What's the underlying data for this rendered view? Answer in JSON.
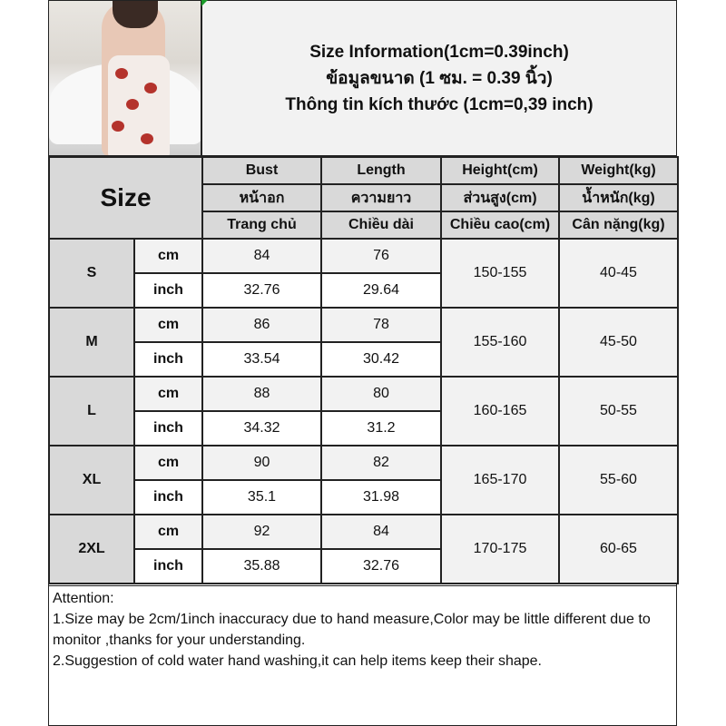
{
  "title": {
    "line1": "Size Information(1cm=0.39inch)",
    "line2": "ข้อมูลขนาด (1 ซม. = 0.39 นิ้ว)",
    "line3": "Thông tin kích thước (1cm=0,39 inch)"
  },
  "header": {
    "size": "Size",
    "columns": [
      {
        "en": "Bust",
        "th": "หน้าอก",
        "vi": "Trang chủ"
      },
      {
        "en": "Length",
        "th": "ความยาว",
        "vi": "Chiều dài"
      },
      {
        "en": "Height(cm)",
        "th": "ส่วนสูง(cm)",
        "vi": "Chiều cao(cm)"
      },
      {
        "en": "Weight(kg)",
        "th": "น้ำหนัก(kg)",
        "vi": "Cân nặng(kg)"
      }
    ]
  },
  "units": {
    "cm": "cm",
    "inch": "inch"
  },
  "rows": [
    {
      "size": "S",
      "cm": {
        "bust": "84",
        "length": "76"
      },
      "inch": {
        "bust": "32.76",
        "length": "29.64"
      },
      "height": "150-155",
      "weight": "40-45"
    },
    {
      "size": "M",
      "cm": {
        "bust": "86",
        "length": "78"
      },
      "inch": {
        "bust": "33.54",
        "length": "30.42"
      },
      "height": "155-160",
      "weight": "45-50"
    },
    {
      "size": "L",
      "cm": {
        "bust": "88",
        "length": "80"
      },
      "inch": {
        "bust": "34.32",
        "length": "31.2"
      },
      "height": "160-165",
      "weight": "50-55"
    },
    {
      "size": "XL",
      "cm": {
        "bust": "90",
        "length": "82"
      },
      "inch": {
        "bust": "35.1",
        "length": "31.98"
      },
      "height": "165-170",
      "weight": "55-60"
    },
    {
      "size": "2XL",
      "cm": {
        "bust": "92",
        "length": "84"
      },
      "inch": {
        "bust": "35.88",
        "length": "32.76"
      },
      "height": "170-175",
      "weight": "60-65"
    }
  ],
  "attention": {
    "heading": "Attention:",
    "line1": "1.Size may be 2cm/1inch inaccuracy due to hand measure,Color may be little different due to monitor ,thanks for your understanding.",
    "line2": "2.Suggestion of cold water hand washing,it can help items keep their shape."
  }
}
